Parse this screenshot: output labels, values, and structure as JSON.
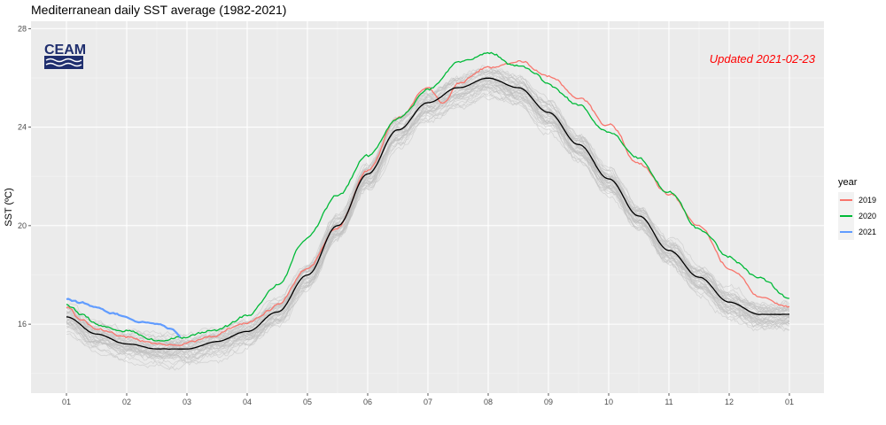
{
  "chart_data": {
    "type": "line",
    "title": "Mediterranean daily SST average (1982-2021)",
    "xlabel": "",
    "ylabel": "SST (ºC)",
    "x_tick_labels": [
      "01",
      "02",
      "03",
      "04",
      "05",
      "06",
      "07",
      "08",
      "09",
      "10",
      "11",
      "12",
      "01"
    ],
    "y_ticks": [
      16,
      20,
      24,
      28
    ],
    "ylim": [
      13.2,
      28.3
    ],
    "xlim": [
      0,
      13
    ],
    "legend_title": "year",
    "legend_placement": "right",
    "annotation": "Updated 2021-02-23",
    "logo_text": "CEAM",
    "colors": {
      "2019": "#f8766d",
      "2020": "#00ba38",
      "2021": "#619cff",
      "climatology": "#000000",
      "past_years": "#bfbfbf",
      "panel": "#ebebeb",
      "annotation": "#ff0000"
    },
    "climatology": {
      "x": [
        0,
        0.5,
        1,
        1.5,
        2,
        2.5,
        3,
        3.5,
        4,
        4.5,
        5,
        5.5,
        6,
        6.5,
        7,
        7.5,
        8,
        8.5,
        9,
        9.5,
        10,
        10.5,
        11,
        11.5,
        12
      ],
      "y": [
        16.3,
        15.6,
        15.2,
        15.0,
        15.0,
        15.3,
        15.7,
        16.5,
        18.0,
        20.0,
        22.1,
        23.9,
        25.0,
        25.6,
        26.0,
        25.6,
        24.6,
        23.3,
        21.9,
        20.4,
        19.0,
        17.9,
        16.9,
        16.4,
        16.4
      ]
    },
    "series": [
      {
        "name": "2019",
        "x": [
          0,
          0.25,
          0.5,
          1,
          1.5,
          2,
          2.5,
          3,
          3.5,
          4,
          4.5,
          5,
          5.5,
          6,
          6.25,
          6.5,
          7,
          7.5,
          8,
          8.5,
          9,
          9.5,
          10,
          10.5,
          11,
          11.5,
          12
        ],
        "y": [
          16.7,
          16.2,
          15.8,
          15.5,
          15.2,
          15.3,
          15.6,
          16.1,
          16.8,
          18.2,
          20.0,
          22.2,
          24.4,
          25.6,
          25.0,
          25.7,
          26.4,
          26.7,
          26.1,
          25.2,
          24.1,
          22.5,
          21.3,
          19.9,
          18.3,
          17.1,
          16.6
        ]
      },
      {
        "name": "2020",
        "x": [
          0,
          0.25,
          0.5,
          1,
          1.5,
          2,
          2.5,
          3,
          3.5,
          4,
          4.5,
          5,
          5.5,
          6,
          6.5,
          7,
          7.5,
          7.75,
          8,
          8.5,
          9,
          9.5,
          10,
          10.5,
          11,
          11.5,
          12
        ],
        "y": [
          16.8,
          16.4,
          16.0,
          15.7,
          15.4,
          15.5,
          15.8,
          16.4,
          17.6,
          19.5,
          21.2,
          22.8,
          24.3,
          25.5,
          26.6,
          27.0,
          26.5,
          26.2,
          25.7,
          24.9,
          23.8,
          22.7,
          21.3,
          19.8,
          18.7,
          17.9,
          17.1
        ]
      },
      {
        "name": "2021",
        "x": [
          0,
          0.25,
          0.5,
          0.75,
          1,
          1.25,
          1.5,
          1.75,
          1.9
        ],
        "y": [
          17.0,
          16.9,
          16.7,
          16.4,
          16.2,
          16.1,
          16.0,
          15.8,
          15.5
        ]
      }
    ]
  }
}
